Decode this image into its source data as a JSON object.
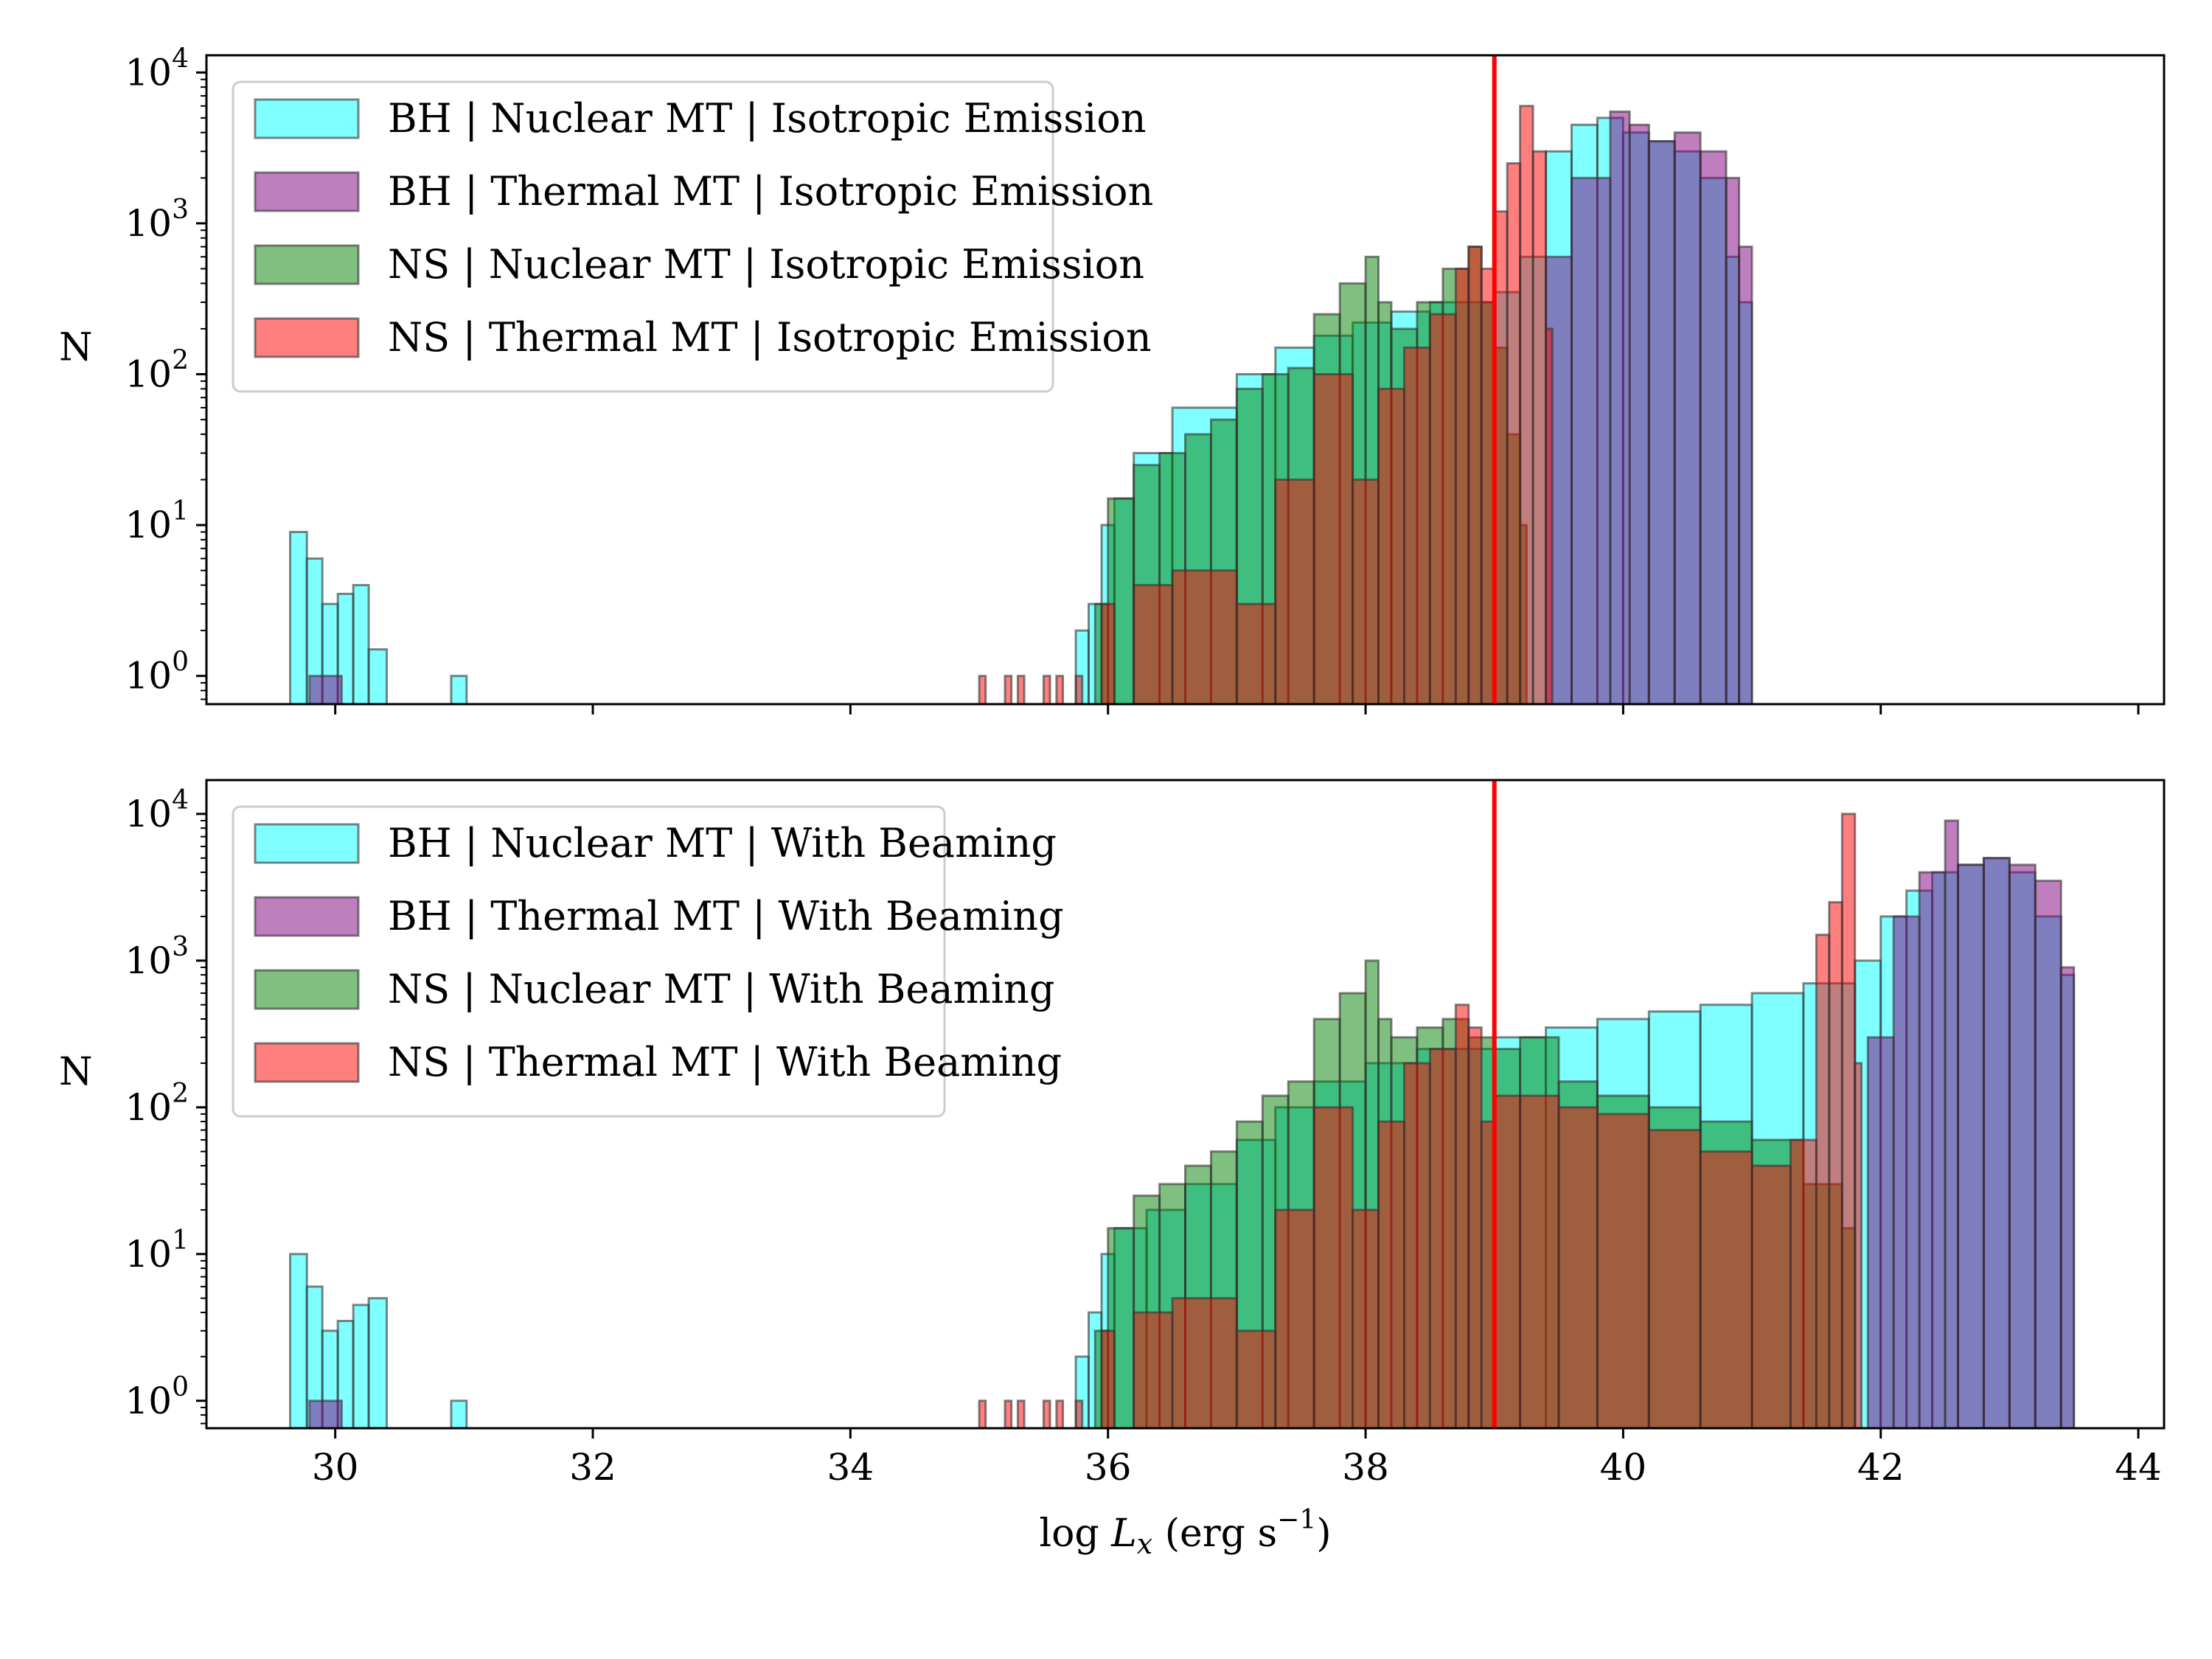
{
  "chart_data": [
    {
      "type": "histogram",
      "panel": "top",
      "ylabel": "N",
      "xlabel": "",
      "yscale": "log",
      "xlim": [
        29,
        44.2
      ],
      "ylim": [
        0.65,
        13000
      ],
      "yticks": [
        {
          "value": 1,
          "label": "10",
          "exp": "0"
        },
        {
          "value": 10,
          "label": "10",
          "exp": "1"
        },
        {
          "value": 100,
          "label": "10",
          "exp": "2"
        },
        {
          "value": 1000,
          "label": "10",
          "exp": "3"
        },
        {
          "value": 10000,
          "label": "10",
          "exp": "4"
        }
      ],
      "vline": {
        "x": 39,
        "color": "#ff0000"
      },
      "legend": {
        "placement": "upper-left"
      },
      "series": [
        {
          "name": "BH | Nuclear MT | Isotropic Emission",
          "color": "#00ffff",
          "bins": [
            [
              29.65,
              29.78,
              9
            ],
            [
              29.78,
              29.9,
              6
            ],
            [
              29.9,
              30.02,
              3
            ],
            [
              30.02,
              30.14,
              3.5
            ],
            [
              30.14,
              30.26,
              4
            ],
            [
              30.26,
              30.4,
              1.5
            ],
            [
              30.9,
              31.02,
              1
            ],
            [
              35.75,
              35.85,
              2
            ],
            [
              35.85,
              35.95,
              3
            ],
            [
              35.95,
              36.05,
              10
            ],
            [
              36.05,
              36.2,
              15
            ],
            [
              36.2,
              36.5,
              30
            ],
            [
              36.5,
              37.0,
              60
            ],
            [
              37.0,
              37.3,
              100
            ],
            [
              37.3,
              37.6,
              150
            ],
            [
              37.6,
              37.9,
              180
            ],
            [
              37.9,
              38.2,
              220
            ],
            [
              38.2,
              38.5,
              260
            ],
            [
              38.5,
              38.8,
              300
            ],
            [
              38.8,
              39.0,
              300
            ],
            [
              39.0,
              39.2,
              350
            ],
            [
              39.2,
              39.4,
              600
            ],
            [
              39.4,
              39.6,
              3000
            ],
            [
              39.6,
              39.8,
              4500
            ],
            [
              39.8,
              40.0,
              5000
            ],
            [
              40.0,
              40.2,
              4000
            ],
            [
              40.2,
              40.4,
              3500
            ],
            [
              40.4,
              40.6,
              3000
            ],
            [
              40.6,
              40.8,
              2000
            ],
            [
              40.8,
              40.9,
              600
            ],
            [
              40.9,
              41.0,
              300
            ]
          ]
        },
        {
          "name": "BH | Thermal MT | Isotropic Emission",
          "color": "#800080",
          "bins": [
            [
              29.8,
              30.05,
              1
            ],
            [
              39.4,
              39.6,
              600
            ],
            [
              39.6,
              39.9,
              2000
            ],
            [
              39.9,
              40.05,
              5500
            ],
            [
              40.05,
              40.2,
              4500
            ],
            [
              40.2,
              40.4,
              3500
            ],
            [
              40.4,
              40.6,
              4000
            ],
            [
              40.6,
              40.8,
              3000
            ],
            [
              40.8,
              40.9,
              2000
            ],
            [
              40.9,
              41.0,
              700
            ]
          ]
        },
        {
          "name": "NS | Nuclear MT | Isotropic Emission",
          "color": "#008000",
          "bins": [
            [
              35.9,
              36.0,
              3
            ],
            [
              36.0,
              36.2,
              15
            ],
            [
              36.2,
              36.4,
              25
            ],
            [
              36.4,
              36.6,
              30
            ],
            [
              36.6,
              36.8,
              40
            ],
            [
              36.8,
              37.0,
              50
            ],
            [
              37.0,
              37.2,
              80
            ],
            [
              37.2,
              37.4,
              100
            ],
            [
              37.4,
              37.6,
              110
            ],
            [
              37.6,
              37.8,
              250
            ],
            [
              37.8,
              38.0,
              400
            ],
            [
              38.0,
              38.1,
              600
            ],
            [
              38.1,
              38.2,
              300
            ],
            [
              38.2,
              38.4,
              200
            ],
            [
              38.4,
              38.6,
              300
            ],
            [
              38.6,
              38.8,
              500
            ],
            [
              38.8,
              38.9,
              700
            ],
            [
              38.9,
              39.0,
              300
            ],
            [
              39.0,
              39.1,
              150
            ],
            [
              39.1,
              39.2,
              40
            ],
            [
              39.2,
              39.25,
              10
            ]
          ]
        },
        {
          "name": "NS | Thermal MT | Isotropic Emission",
          "color": "#ff0000",
          "bins": [
            [
              35.0,
              35.05,
              1
            ],
            [
              35.2,
              35.25,
              1
            ],
            [
              35.3,
              35.35,
              1
            ],
            [
              35.5,
              35.55,
              1
            ],
            [
              35.6,
              35.65,
              1
            ],
            [
              35.75,
              35.8,
              1
            ],
            [
              35.95,
              36.05,
              3
            ],
            [
              36.2,
              36.5,
              4
            ],
            [
              36.5,
              37.0,
              5
            ],
            [
              37.0,
              37.3,
              3
            ],
            [
              37.3,
              37.6,
              20
            ],
            [
              37.6,
              37.9,
              100
            ],
            [
              37.9,
              38.1,
              20
            ],
            [
              38.1,
              38.3,
              80
            ],
            [
              38.3,
              38.5,
              150
            ],
            [
              38.5,
              38.7,
              250
            ],
            [
              38.7,
              38.8,
              500
            ],
            [
              38.8,
              38.9,
              700
            ],
            [
              38.9,
              39.0,
              500
            ],
            [
              39.0,
              39.1,
              1200
            ],
            [
              39.1,
              39.2,
              2500
            ],
            [
              39.2,
              39.3,
              6000
            ],
            [
              39.3,
              39.4,
              3000
            ],
            [
              39.4,
              39.45,
              200
            ]
          ]
        }
      ]
    },
    {
      "type": "histogram",
      "panel": "bottom",
      "ylabel": "N",
      "xlabel": "log L_x (erg s^-1)",
      "yscale": "log",
      "xlim": [
        29,
        44.2
      ],
      "ylim": [
        0.65,
        17000
      ],
      "xticks": [
        30,
        32,
        34,
        36,
        38,
        40,
        42,
        44
      ],
      "yticks": [
        {
          "value": 1,
          "label": "10",
          "exp": "0"
        },
        {
          "value": 10,
          "label": "10",
          "exp": "1"
        },
        {
          "value": 100,
          "label": "10",
          "exp": "2"
        },
        {
          "value": 1000,
          "label": "10",
          "exp": "3"
        },
        {
          "value": 10000,
          "label": "10",
          "exp": "4"
        }
      ],
      "vline": {
        "x": 39,
        "color": "#ff0000"
      },
      "legend": {
        "placement": "upper-left"
      },
      "series": [
        {
          "name": "BH | Nuclear MT | With Beaming",
          "color": "#00ffff",
          "bins": [
            [
              29.65,
              29.78,
              10
            ],
            [
              29.78,
              29.9,
              6
            ],
            [
              29.9,
              30.02,
              3
            ],
            [
              30.02,
              30.14,
              3.5
            ],
            [
              30.14,
              30.26,
              4.5
            ],
            [
              30.26,
              30.4,
              5
            ],
            [
              30.9,
              31.02,
              1
            ],
            [
              35.75,
              35.85,
              2
            ],
            [
              35.85,
              35.95,
              4
            ],
            [
              35.95,
              36.05,
              10
            ],
            [
              36.05,
              36.3,
              15
            ],
            [
              36.3,
              36.6,
              20
            ],
            [
              36.6,
              37.0,
              30
            ],
            [
              37.0,
              37.3,
              60
            ],
            [
              37.3,
              37.6,
              100
            ],
            [
              37.6,
              38.0,
              150
            ],
            [
              38.0,
              38.4,
              200
            ],
            [
              38.4,
              39.0,
              250
            ],
            [
              39.0,
              39.4,
              300
            ],
            [
              39.4,
              39.8,
              350
            ],
            [
              39.8,
              40.2,
              400
            ],
            [
              40.2,
              40.6,
              450
            ],
            [
              40.6,
              41.0,
              500
            ],
            [
              41.0,
              41.4,
              600
            ],
            [
              41.4,
              41.8,
              700
            ],
            [
              41.8,
              42.0,
              1000
            ],
            [
              42.0,
              42.2,
              2000
            ],
            [
              42.2,
              42.4,
              3000
            ],
            [
              42.4,
              42.6,
              4000
            ],
            [
              42.6,
              42.8,
              4500
            ],
            [
              42.8,
              43.0,
              5000
            ],
            [
              43.0,
              43.2,
              4000
            ],
            [
              43.2,
              43.4,
              2000
            ],
            [
              43.4,
              43.5,
              800
            ]
          ]
        },
        {
          "name": "BH | Thermal MT | With Beaming",
          "color": "#800080",
          "bins": [
            [
              29.8,
              30.05,
              1
            ],
            [
              41.9,
              42.1,
              300
            ],
            [
              42.1,
              42.3,
              2000
            ],
            [
              42.3,
              42.5,
              4000
            ],
            [
              42.5,
              42.6,
              9000
            ],
            [
              42.6,
              42.8,
              4500
            ],
            [
              42.8,
              43.0,
              5000
            ],
            [
              43.0,
              43.2,
              4500
            ],
            [
              43.2,
              43.4,
              3500
            ],
            [
              43.4,
              43.5,
              900
            ]
          ]
        },
        {
          "name": "NS | Nuclear MT | With Beaming",
          "color": "#008000",
          "bins": [
            [
              35.9,
              36.0,
              3
            ],
            [
              36.0,
              36.2,
              15
            ],
            [
              36.2,
              36.4,
              25
            ],
            [
              36.4,
              36.6,
              30
            ],
            [
              36.6,
              36.8,
              40
            ],
            [
              36.8,
              37.0,
              50
            ],
            [
              37.0,
              37.2,
              80
            ],
            [
              37.2,
              37.4,
              120
            ],
            [
              37.4,
              37.6,
              150
            ],
            [
              37.6,
              37.8,
              400
            ],
            [
              37.8,
              38.0,
              600
            ],
            [
              38.0,
              38.1,
              1000
            ],
            [
              38.1,
              38.2,
              400
            ],
            [
              38.2,
              38.4,
              300
            ],
            [
              38.4,
              38.6,
              350
            ],
            [
              38.6,
              38.8,
              400
            ],
            [
              38.8,
              39.0,
              300
            ],
            [
              39.0,
              39.2,
              250
            ],
            [
              39.2,
              39.5,
              300
            ],
            [
              39.5,
              39.8,
              150
            ],
            [
              39.8,
              40.2,
              120
            ],
            [
              40.2,
              40.6,
              100
            ],
            [
              40.6,
              41.0,
              80
            ],
            [
              41.0,
              41.4,
              60
            ],
            [
              41.4,
              41.7,
              30
            ],
            [
              41.7,
              41.8,
              15
            ]
          ]
        },
        {
          "name": "NS | Thermal MT | With Beaming",
          "color": "#ff0000",
          "bins": [
            [
              35.0,
              35.05,
              1
            ],
            [
              35.2,
              35.25,
              1
            ],
            [
              35.3,
              35.35,
              1
            ],
            [
              35.5,
              35.55,
              1
            ],
            [
              35.6,
              35.65,
              1
            ],
            [
              35.75,
              35.8,
              1
            ],
            [
              35.95,
              36.05,
              3
            ],
            [
              36.2,
              36.5,
              4
            ],
            [
              36.5,
              37.0,
              5
            ],
            [
              37.0,
              37.3,
              3
            ],
            [
              37.3,
              37.6,
              20
            ],
            [
              37.6,
              37.9,
              100
            ],
            [
              37.9,
              38.1,
              20
            ],
            [
              38.1,
              38.3,
              80
            ],
            [
              38.3,
              38.5,
              200
            ],
            [
              38.5,
              38.7,
              250
            ],
            [
              38.7,
              38.8,
              500
            ],
            [
              38.8,
              38.9,
              350
            ],
            [
              38.9,
              39.0,
              80
            ],
            [
              39.0,
              39.2,
              120
            ],
            [
              39.2,
              39.5,
              120
            ],
            [
              39.5,
              39.8,
              100
            ],
            [
              39.8,
              40.2,
              90
            ],
            [
              40.2,
              40.6,
              70
            ],
            [
              40.6,
              41.0,
              50
            ],
            [
              41.0,
              41.3,
              40
            ],
            [
              41.3,
              41.5,
              60
            ],
            [
              41.5,
              41.6,
              1500
            ],
            [
              41.6,
              41.7,
              2500
            ],
            [
              41.7,
              41.8,
              10000
            ],
            [
              41.8,
              41.85,
              200
            ]
          ]
        }
      ]
    }
  ]
}
